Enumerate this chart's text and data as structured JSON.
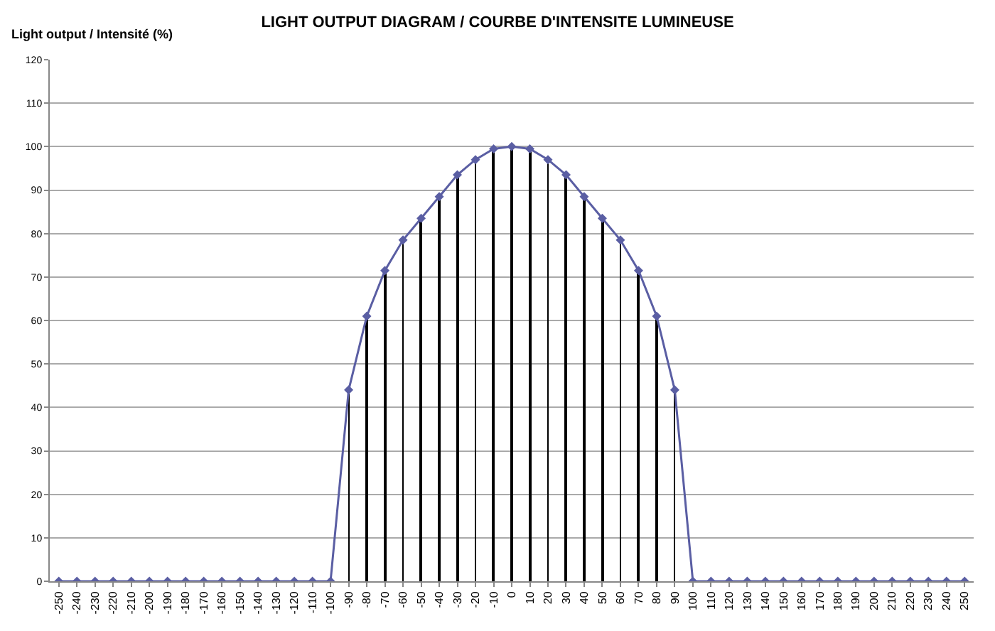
{
  "chart_data": {
    "type": "line",
    "title": "LIGHT OUTPUT DIAGRAM / COURBE D'INTENSITE LUMINEUSE",
    "ylabel": "Light output / Intensité (%)",
    "categories": [
      "-250",
      "-240",
      "-230",
      "-220",
      "-210",
      "-200",
      "-190",
      "-180",
      "-170",
      "-160",
      "-150",
      "-140",
      "-130",
      "-120",
      "-110",
      "-100",
      "-90",
      "-80",
      "-70",
      "-60",
      "-50",
      "-40",
      "-30",
      "-20",
      "-10",
      "0",
      "10",
      "20",
      "30",
      "40",
      "50",
      "60",
      "70",
      "80",
      "90",
      "100",
      "110",
      "120",
      "130",
      "140",
      "150",
      "160",
      "170",
      "180",
      "190",
      "200",
      "210",
      "220",
      "230",
      "240",
      "250"
    ],
    "series": [
      {
        "type": "bar",
        "color": "#000000",
        "values": [
          0,
          0,
          0,
          0,
          0,
          0,
          0,
          0,
          0,
          0,
          0,
          0,
          0,
          0,
          0,
          0,
          44,
          61,
          71.5,
          78.5,
          83.5,
          88.5,
          93.5,
          97,
          99.5,
          100,
          99.5,
          97,
          93.5,
          88.5,
          83.5,
          78.5,
          71.5,
          61,
          44,
          0,
          0,
          0,
          0,
          0,
          0,
          0,
          0,
          0,
          0,
          0,
          0,
          0,
          0,
          0,
          0
        ]
      },
      {
        "color": "#5a5ea3",
        "values": [
          0,
          0,
          0,
          0,
          0,
          0,
          0,
          0,
          0,
          0,
          0,
          0,
          0,
          0,
          0,
          0,
          44,
          61,
          71.5,
          78.5,
          83.5,
          88.5,
          93.5,
          97,
          99.5,
          100,
          99.5,
          97,
          93.5,
          88.5,
          83.5,
          78.5,
          71.5,
          61,
          44,
          0,
          0,
          0,
          0,
          0,
          0,
          0,
          0,
          0,
          0,
          0,
          0,
          0,
          0,
          0,
          0
        ]
      }
    ],
    "ylim": [
      0,
      120
    ],
    "yticks": [
      0,
      10,
      20,
      30,
      40,
      50,
      60,
      70,
      80,
      90,
      100,
      110,
      120
    ],
    "grid": "y",
    "marker": "diamond",
    "line_style": "solid"
  }
}
